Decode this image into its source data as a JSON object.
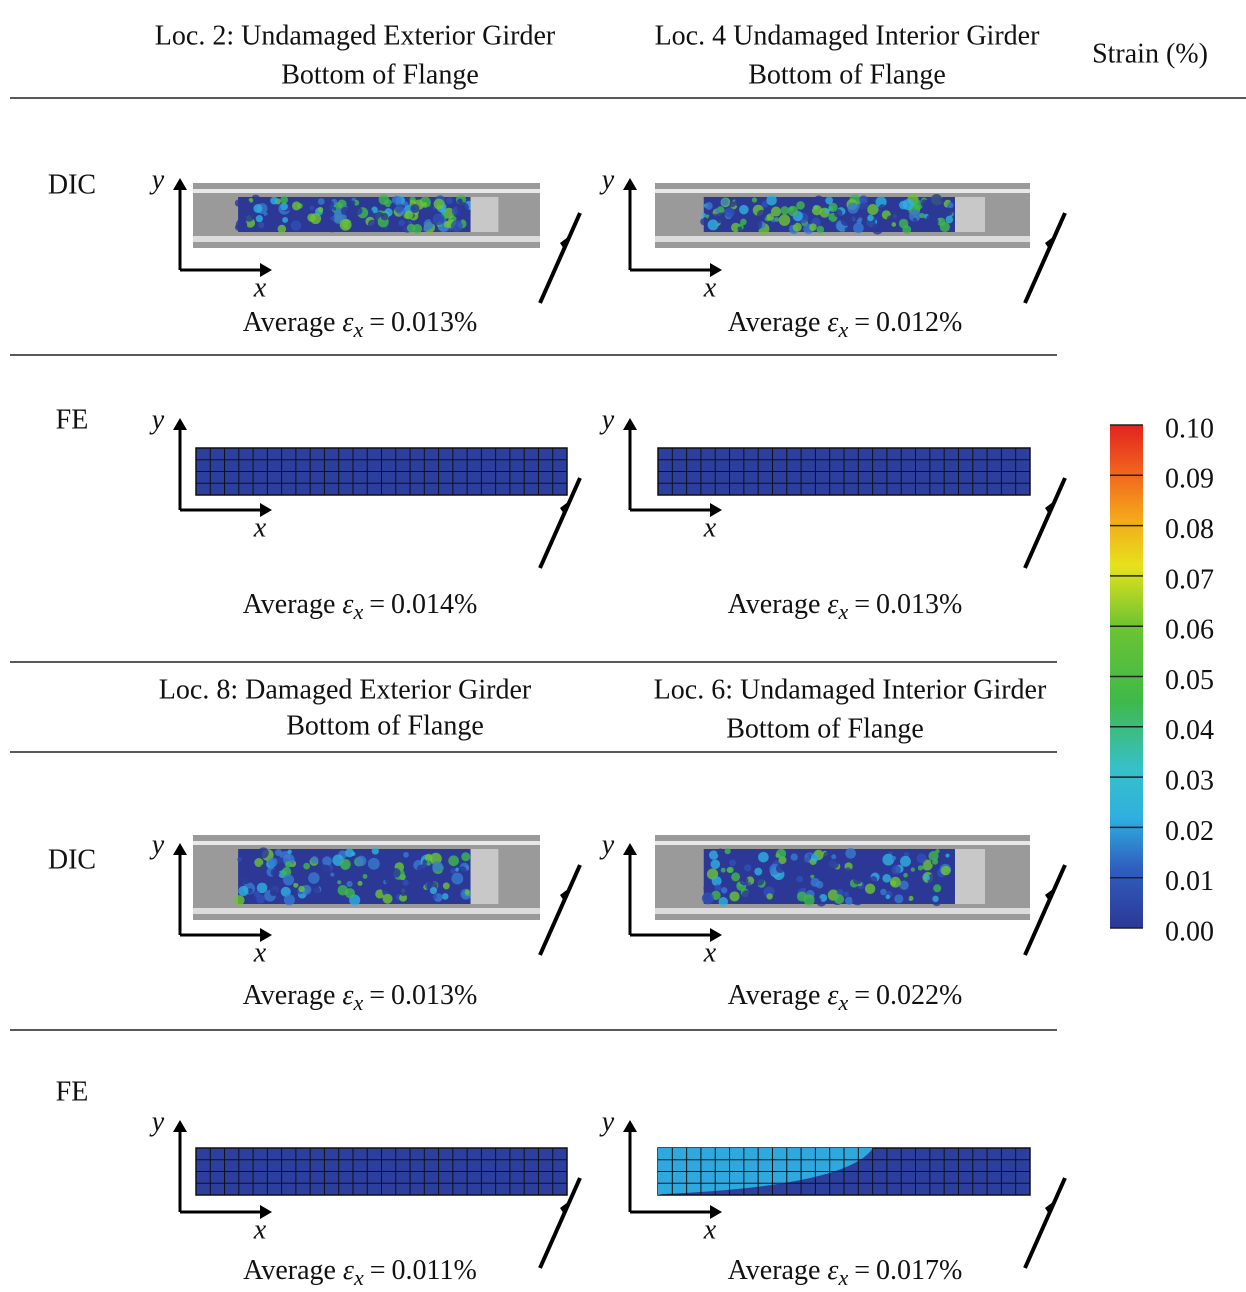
{
  "columns_top": [
    {
      "title": "Loc. 2: Undamaged Exterior Girder",
      "subtitle": "Bottom of Flange"
    },
    {
      "title": "Loc. 4 Undamaged Interior Girder",
      "subtitle": "Bottom of Flange"
    }
  ],
  "columns_bottom": [
    {
      "title": "Loc. 8: Damaged Exterior Girder",
      "subtitle": "Bottom of Flange"
    },
    {
      "title": "Loc. 6: Undamaged Interior Girder",
      "subtitle": "Bottom of Flange"
    }
  ],
  "rows": [
    {
      "label": "DIC",
      "averages": [
        "0.013%",
        "0.012%"
      ]
    },
    {
      "label": "FE",
      "averages": [
        "0.014%",
        "0.013%"
      ]
    },
    {
      "label": "DIC",
      "averages": [
        "0.013%",
        "0.022%"
      ]
    },
    {
      "label": "FE",
      "averages": [
        "0.011%",
        "0.017%"
      ]
    }
  ],
  "axis_labels": {
    "x": "x",
    "y": "y"
  },
  "average_label": {
    "prefix": "Average",
    "symbol": "ε",
    "sub": "x",
    "relation": "="
  },
  "colorbar": {
    "title": "Strain (%)",
    "lim": [
      0,
      0.1
    ],
    "ticks": [
      {
        "value": 0,
        "label": "0.00"
      },
      {
        "value": 0.01,
        "label": "0.01"
      },
      {
        "value": 0.02,
        "label": "0.02"
      },
      {
        "value": 0.03,
        "label": "0.03"
      },
      {
        "value": 0.04,
        "label": "0.04"
      },
      {
        "value": 0.05,
        "label": "0.05"
      },
      {
        "value": 0.06,
        "label": "0.06"
      },
      {
        "value": 0.07,
        "label": "0.07"
      },
      {
        "value": 0.08,
        "label": "0.08"
      },
      {
        "value": 0.09,
        "label": "0.09"
      },
      {
        "value": 0.1,
        "label": "0.10"
      }
    ]
  }
}
